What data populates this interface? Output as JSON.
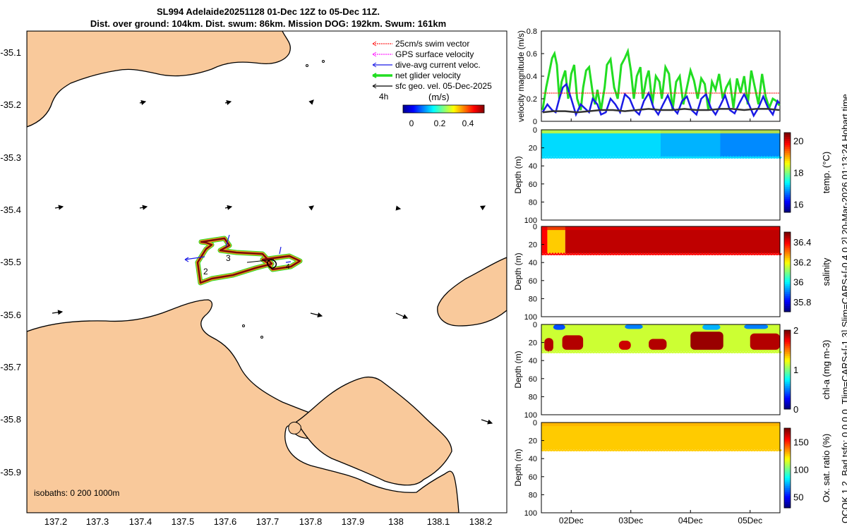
{
  "header": {
    "line1": "SL994 Adelaide20251128 01-Dec 12Z to 05-Dec 11Z.",
    "line2": "Dist. over ground: 104km. Dist. swum: 86km. Mission DOG: 192km. Swum: 161km"
  },
  "side_note": "QCOK 1  2. Bad tsfo: 0  0  0  0. Tlim=CARS+[-1 3] Slim=CARS+[-0.4 0.2] 20-Mar-2026 01:13:24 Hobart time",
  "colors": {
    "land": "#f9c99b",
    "swim": "#ff2020",
    "gps": "#ff20ff",
    "current": "#1a1ae6",
    "glider": "#22dd22",
    "sfc": "#000000",
    "track_dark": "#7a0a0a",
    "track_light": "#f0a020"
  },
  "map": {
    "legend": [
      {
        "label": "25cm/s swim vector",
        "color": "#ff2020"
      },
      {
        "label": "GPS surface velocity",
        "color": "#ff20ff"
      },
      {
        "label": "dive-avg current veloc.",
        "color": "#1a1ae6"
      },
      {
        "label": "net glider velocity",
        "color": "#22dd22"
      },
      {
        "label": "sfc geo. vel. 05-Dec-2025",
        "color": "#000000"
      }
    ],
    "marker_4h": "4h",
    "colorbar_unit": "(m/s)",
    "colorbar_ticks": [
      "0",
      "0.2",
      "0.4"
    ],
    "isobaths": "isobaths: 0   200  1000m",
    "track_labels": [
      "2",
      "3",
      "4"
    ],
    "lon_ticks": [
      "137.2",
      "137.3",
      "137.4",
      "137.5",
      "137.6",
      "137.7",
      "137.8",
      "137.9",
      "138",
      "138.1",
      "138.2"
    ],
    "lat_ticks": [
      "-35.1",
      "-35.2",
      "-35.3",
      "-35.4",
      "-35.5",
      "-35.6",
      "-35.7",
      "-35.8",
      "-35.9"
    ]
  },
  "chart_data": [
    {
      "type": "line",
      "title": "",
      "ylabel": "velocity magnitude (m/s)",
      "ylim": [
        0,
        0.8
      ],
      "yticks": [
        "0",
        "0.2",
        "0.4",
        "0.6",
        "0.8"
      ],
      "xlim_days": [
        1.5,
        5.5
      ],
      "series": [
        {
          "name": "net glider velocity",
          "color": "#22dd22",
          "x": [
            1.52,
            1.58,
            1.62,
            1.68,
            1.72,
            1.76,
            1.8,
            1.84,
            1.9,
            1.95,
            2.0,
            2.05,
            2.1,
            2.16,
            2.2,
            2.25,
            2.3,
            2.36,
            2.4,
            2.44,
            2.5,
            2.56,
            2.6,
            2.66,
            2.72,
            2.78,
            2.84,
            2.9,
            2.95,
            3.0,
            3.05,
            3.1,
            3.16,
            3.2,
            3.26,
            3.3,
            3.36,
            3.42,
            3.48,
            3.52,
            3.58,
            3.64,
            3.7,
            3.76,
            3.82,
            3.88,
            3.94,
            4.0,
            4.06,
            4.12,
            4.18,
            4.24,
            4.3,
            4.36,
            4.42,
            4.48,
            4.54,
            4.6,
            4.66,
            4.72,
            4.78,
            4.84,
            4.9,
            4.96,
            5.02,
            5.08,
            5.14,
            5.2,
            5.26,
            5.32,
            5.38,
            5.44,
            5.49
          ],
          "y": [
            0.1,
            0.3,
            0.4,
            0.56,
            0.6,
            0.5,
            0.2,
            0.35,
            0.45,
            0.2,
            0.42,
            0.5,
            0.2,
            0.1,
            0.3,
            0.45,
            0.48,
            0.25,
            0.15,
            0.28,
            0.1,
            0.3,
            0.5,
            0.55,
            0.3,
            0.2,
            0.5,
            0.56,
            0.62,
            0.45,
            0.2,
            0.4,
            0.48,
            0.2,
            0.38,
            0.45,
            0.15,
            0.4,
            0.35,
            0.2,
            0.48,
            0.42,
            0.1,
            0.35,
            0.4,
            0.15,
            0.3,
            0.45,
            0.36,
            0.2,
            0.38,
            0.33,
            0.1,
            0.35,
            0.28,
            0.42,
            0.2,
            0.3,
            0.36,
            0.12,
            0.38,
            0.25,
            0.4,
            0.15,
            0.45,
            0.3,
            0.15,
            0.42,
            0.22,
            0.12,
            0.2,
            0.18,
            0.14
          ]
        },
        {
          "name": "dive-avg current veloc.",
          "color": "#1a1ae6",
          "x": [
            1.52,
            1.6,
            1.68,
            1.74,
            1.8,
            1.86,
            1.92,
            2.0,
            2.08,
            2.16,
            2.22,
            2.3,
            2.36,
            2.44,
            2.5,
            2.58,
            2.66,
            2.74,
            2.82,
            2.9,
            2.98,
            3.06,
            3.14,
            3.22,
            3.3,
            3.38,
            3.46,
            3.54,
            3.62,
            3.7,
            3.78,
            3.86,
            3.94,
            4.02,
            4.1,
            4.18,
            4.26,
            4.34,
            4.42,
            4.5,
            4.58,
            4.66,
            4.74,
            4.82,
            4.9,
            4.98,
            5.06,
            5.14,
            5.22,
            5.3,
            5.38,
            5.46,
            5.49
          ],
          "y": [
            0.08,
            0.15,
            0.1,
            0.08,
            0.2,
            0.3,
            0.33,
            0.2,
            0.06,
            0.15,
            0.12,
            0.08,
            0.2,
            0.15,
            0.06,
            0.08,
            0.2,
            0.15,
            0.08,
            0.24,
            0.2,
            0.1,
            0.06,
            0.18,
            0.25,
            0.12,
            0.06,
            0.15,
            0.23,
            0.12,
            0.07,
            0.18,
            0.22,
            0.1,
            0.06,
            0.2,
            0.24,
            0.12,
            0.06,
            0.14,
            0.23,
            0.1,
            0.07,
            0.16,
            0.24,
            0.15,
            0.05,
            0.12,
            0.22,
            0.12,
            0.06,
            0.18,
            0.16
          ]
        },
        {
          "name": "sfc geo. vel.",
          "color": "#333333",
          "x": [
            1.52,
            1.7,
            1.9,
            2.1,
            2.3,
            2.5,
            2.7,
            2.9,
            3.1,
            3.3,
            3.5,
            3.7,
            3.9,
            4.1,
            4.3,
            4.5,
            4.7,
            4.9,
            5.1,
            5.3,
            5.49
          ],
          "y": [
            0.08,
            0.09,
            0.09,
            0.08,
            0.09,
            0.1,
            0.1,
            0.09,
            0.1,
            0.11,
            0.1,
            0.1,
            0.11,
            0.1,
            0.1,
            0.11,
            0.11,
            0.1,
            0.11,
            0.11,
            0.1
          ]
        },
        {
          "name": "25cm/s swim vector",
          "color": "#ff2020",
          "x": [
            1.52,
            5.49
          ],
          "y": [
            0.25,
            0.25
          ]
        }
      ]
    },
    {
      "type": "heatmap",
      "ylabel": "Depth (m)",
      "yticks": [
        "0",
        "20",
        "40",
        "60",
        "80",
        "100"
      ],
      "ylim": [
        0,
        100
      ],
      "colorbar_label": "temp. (°C)",
      "colorbar_ticks": [
        "16",
        "18",
        "20"
      ],
      "clim": [
        15.5,
        20.5
      ],
      "bands": [
        {
          "x0": 1.5,
          "x1": 5.5,
          "value": 17.2
        },
        {
          "x0": 3.5,
          "x1": 4.5,
          "value": 17.0
        },
        {
          "x0": 4.5,
          "x1": 5.5,
          "value": 16.8
        }
      ],
      "surface_value": 18.6,
      "max_depth": 30,
      "xticks": [
        "02Dec",
        "03Dec",
        "04Dec",
        "05Dec"
      ]
    },
    {
      "type": "heatmap",
      "ylabel": "Depth (m)",
      "yticks": [
        "0",
        "20",
        "40",
        "60",
        "80",
        "100"
      ],
      "ylim": [
        0,
        100
      ],
      "colorbar_label": "salinity",
      "colorbar_ticks": [
        "35.8",
        "36",
        "36.2",
        "36.4"
      ],
      "clim": [
        35.7,
        36.5
      ],
      "bands": [
        {
          "x0": 1.5,
          "x1": 1.6,
          "value": 36.4
        },
        {
          "x0": 1.6,
          "x1": 1.9,
          "value": 36.24
        },
        {
          "x0": 1.9,
          "x1": 5.5,
          "value": 36.45
        }
      ],
      "surface_value": 36.42,
      "max_depth": 30,
      "xticks": [
        "02Dec",
        "03Dec",
        "04Dec",
        "05Dec"
      ]
    },
    {
      "type": "heatmap",
      "ylabel": "Depth (m)",
      "yticks": [
        "0",
        "20",
        "40",
        "60",
        "80",
        "100"
      ],
      "ylim": [
        0,
        100
      ],
      "colorbar_label": "chl-a (mg m-3)",
      "colorbar_ticks": [
        "0",
        "1",
        "2"
      ],
      "clim": [
        0,
        2
      ],
      "bands": [
        {
          "x0": 1.5,
          "x1": 5.5,
          "value": 1.15
        }
      ],
      "patches": [
        {
          "x0": 1.55,
          "x1": 1.7,
          "d0": 15,
          "d1": 30,
          "value": 1.9
        },
        {
          "x0": 1.85,
          "x1": 2.2,
          "d0": 12,
          "d1": 28,
          "value": 1.9
        },
        {
          "x0": 2.8,
          "x1": 3.0,
          "d0": 18,
          "d1": 28,
          "value": 1.85
        },
        {
          "x0": 3.3,
          "x1": 3.6,
          "d0": 16,
          "d1": 28,
          "value": 1.9
        },
        {
          "x0": 4.0,
          "x1": 4.55,
          "d0": 8,
          "d1": 28,
          "value": 1.95
        },
        {
          "x0": 5.0,
          "x1": 5.5,
          "d0": 10,
          "d1": 28,
          "value": 1.9
        },
        {
          "x0": 1.7,
          "x1": 1.9,
          "d0": 0,
          "d1": 6,
          "value": 0.4
        },
        {
          "x0": 2.9,
          "x1": 3.2,
          "d0": 0,
          "d1": 5,
          "value": 0.5
        },
        {
          "x0": 4.2,
          "x1": 4.5,
          "d0": 0,
          "d1": 6,
          "value": 0.6
        },
        {
          "x0": 4.9,
          "x1": 5.3,
          "d0": 0,
          "d1": 5,
          "value": 0.5
        }
      ],
      "max_depth": 30,
      "xticks": [
        "02Dec",
        "03Dec",
        "04Dec",
        "05Dec"
      ]
    },
    {
      "type": "heatmap",
      "ylabel": "Depth (m)",
      "yticks": [
        "0",
        "20",
        "40",
        "60",
        "80",
        "100"
      ],
      "ylim": [
        0,
        100
      ],
      "colorbar_label": "Ox. sat. ratio (%)",
      "colorbar_ticks": [
        "50",
        "100",
        "150"
      ],
      "clim": [
        30,
        175
      ],
      "bands": [
        {
          "x0": 1.5,
          "x1": 5.5,
          "value": 128
        }
      ],
      "surface_value": 132,
      "max_depth": 30,
      "xticks": [
        "02Dec",
        "03Dec",
        "04Dec",
        "05Dec"
      ]
    }
  ]
}
